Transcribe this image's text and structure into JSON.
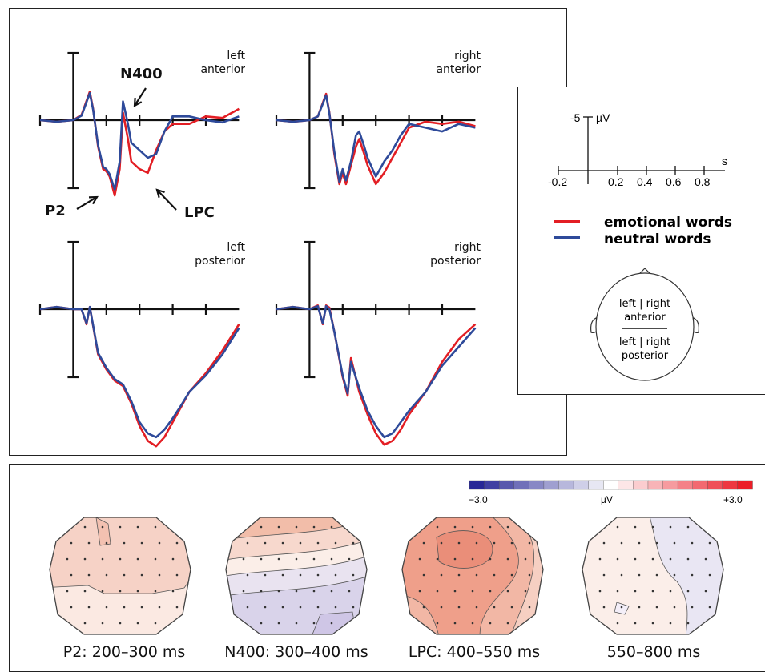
{
  "colors": {
    "emotional": "#e31e24",
    "neutral": "#2e4a9a",
    "axis": "#111111"
  },
  "chart_data": [
    {
      "type": "line",
      "title": "",
      "xlabel": "s",
      "ylabel": "µV",
      "x_ticks": [
        "-0.2",
        "0.2",
        "0.4",
        "0.6",
        "0.8"
      ],
      "y_tick_label": "-5",
      "y_unit": "µV",
      "y_inverted": true,
      "xlim": [
        -0.2,
        1.0
      ],
      "series_names": [
        "emotional words",
        "neutral words"
      ],
      "panels": [
        {
          "region": "left anterior",
          "label_lines": [
            "left",
            "anterior"
          ],
          "x": [
            -0.2,
            -0.1,
            0,
            0.05,
            0.1,
            0.12,
            0.15,
            0.18,
            0.2,
            0.22,
            0.25,
            0.28,
            0.3,
            0.33,
            0.35,
            0.4,
            0.45,
            0.5,
            0.55,
            0.6,
            0.7,
            0.8,
            0.9,
            1.0
          ],
          "series": [
            {
              "name": "emotional words",
              "values": [
                0,
                0.2,
                0,
                -0.7,
                -3.8,
                -1.5,
                3.5,
                6.5,
                6.8,
                7.5,
                10.0,
                6.5,
                -1.0,
                2.5,
                5.5,
                6.5,
                7.0,
                4.0,
                1.5,
                0.5,
                0.5,
                -0.5,
                -0.3,
                -1.5
              ]
            },
            {
              "name": "neutral words",
              "values": [
                0,
                0.2,
                0,
                -0.6,
                -3.6,
                -1.4,
                3.3,
                6.2,
                6.5,
                7.2,
                9.2,
                5.5,
                -2.5,
                0.5,
                3.0,
                4.0,
                5.0,
                4.5,
                1.5,
                -0.5,
                -0.5,
                0.0,
                0.3,
                -0.5
              ]
            }
          ],
          "annotations": [
            "N400",
            "P2",
            "LPC"
          ]
        },
        {
          "region": "right anterior",
          "label_lines": [
            "right",
            "anterior"
          ],
          "x": [
            -0.2,
            -0.1,
            0,
            0.05,
            0.1,
            0.12,
            0.15,
            0.18,
            0.2,
            0.22,
            0.25,
            0.28,
            0.3,
            0.33,
            0.35,
            0.4,
            0.45,
            0.5,
            0.55,
            0.6,
            0.7,
            0.8,
            0.9,
            1.0
          ],
          "series": [
            {
              "name": "emotional words",
              "values": [
                0,
                0.2,
                0,
                -0.5,
                -3.5,
                -1.0,
                4.5,
                8.5,
                7.0,
                8.5,
                6.0,
                3.5,
                2.5,
                4.5,
                6.0,
                8.5,
                7.0,
                5.0,
                3.0,
                1.0,
                0.2,
                0.5,
                0.2,
                0.8
              ]
            },
            {
              "name": "neutral words",
              "values": [
                0,
                0.2,
                0,
                -0.5,
                -3.3,
                -0.9,
                4.2,
                8.2,
                6.5,
                8.0,
                5.5,
                2.0,
                1.5,
                3.5,
                5.0,
                7.5,
                5.5,
                4.0,
                2.0,
                0.5,
                1.0,
                1.5,
                0.5,
                1.0
              ]
            }
          ]
        },
        {
          "region": "left posterior",
          "label_lines": [
            "left",
            "posterior"
          ],
          "x": [
            -0.2,
            -0.1,
            0,
            0.05,
            0.08,
            0.1,
            0.15,
            0.2,
            0.25,
            0.3,
            0.35,
            0.4,
            0.45,
            0.5,
            0.55,
            0.6,
            0.65,
            0.7,
            0.8,
            0.9,
            1.0
          ],
          "series": [
            {
              "name": "emotional words",
              "values": [
                0,
                -0.3,
                0,
                0,
                2.0,
                -0.3,
                6.0,
                8.0,
                9.5,
                10.2,
                12.5,
                15.5,
                17.5,
                18.2,
                17.0,
                15.0,
                13.0,
                11.0,
                8.5,
                5.5,
                2.0
              ]
            },
            {
              "name": "neutral words",
              "values": [
                0,
                -0.3,
                0,
                0,
                1.9,
                -0.3,
                5.8,
                7.8,
                9.3,
                10.0,
                12.2,
                15.0,
                16.5,
                17.0,
                16.0,
                14.5,
                12.8,
                11.0,
                8.8,
                6.0,
                2.5
              ]
            }
          ]
        },
        {
          "region": "right posterior",
          "label_lines": [
            "right",
            "posterior"
          ],
          "x": [
            -0.2,
            -0.1,
            0,
            0.05,
            0.08,
            0.1,
            0.12,
            0.15,
            0.2,
            0.23,
            0.25,
            0.3,
            0.35,
            0.4,
            0.45,
            0.5,
            0.55,
            0.6,
            0.7,
            0.8,
            0.9,
            1.0
          ],
          "series": [
            {
              "name": "emotional words",
              "values": [
                0,
                -0.3,
                0,
                -0.5,
                2.0,
                -0.5,
                -0.2,
                3.0,
                9.0,
                11.5,
                6.5,
                11.0,
                14.0,
                16.5,
                18.0,
                17.5,
                16.0,
                14.0,
                11.0,
                7.0,
                4.0,
                2.0
              ]
            },
            {
              "name": "neutral words",
              "values": [
                0,
                -0.3,
                0,
                -0.4,
                1.9,
                -0.4,
                0.0,
                3.0,
                8.8,
                11.2,
                7.0,
                10.5,
                13.5,
                15.5,
                17.0,
                16.5,
                15.0,
                13.5,
                11.0,
                7.5,
                5.0,
                2.5
              ]
            }
          ]
        }
      ]
    },
    {
      "type": "heatmap",
      "colorbar": {
        "min_label": "−3.0",
        "unit_label": "µV",
        "max_label": "+3.0",
        "range": [
          -3.0,
          3.0
        ]
      },
      "maps": [
        {
          "label": "P2: 200–300 ms",
          "range_uV": [
            -0.5,
            1.5
          ]
        },
        {
          "label": "N400: 300–400 ms",
          "range_uV": [
            -1.5,
            1.5
          ]
        },
        {
          "label": "LPC: 400–550 ms",
          "range_uV": [
            0.5,
            2.5
          ]
        },
        {
          "label": "550–800 ms",
          "range_uV": [
            -1.0,
            0.5
          ]
        }
      ]
    }
  ],
  "legend": {
    "axis_y_tick": "-5",
    "axis_y_unit": "µV",
    "axis_x_unit": "s",
    "x_ticks": [
      "-0.2",
      "0.2",
      "0.4",
      "0.6",
      "0.8"
    ],
    "items": [
      {
        "label": "emotional words"
      },
      {
        "label": "neutral words"
      }
    ],
    "head": {
      "top_line": "left | right",
      "top_sub": "anterior",
      "bottom_line": "left | right",
      "bottom_sub": "posterior"
    }
  },
  "annotations": {
    "n400": "N400",
    "p2": "P2",
    "lpc": "LPC"
  }
}
